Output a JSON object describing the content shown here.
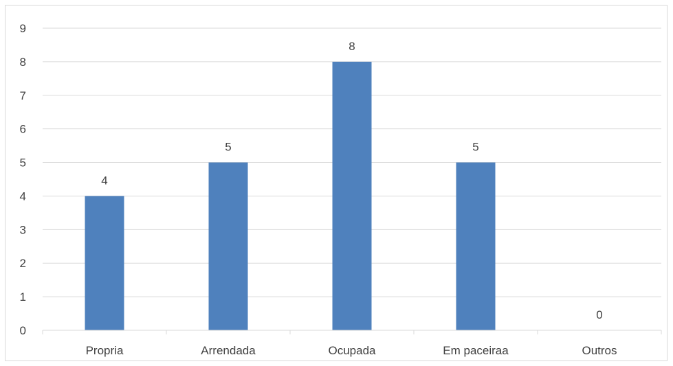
{
  "chart_data": {
    "type": "bar",
    "categories": [
      "Propria",
      "Arrendada",
      "Ocupada",
      "Em paceiraa",
      "Outros"
    ],
    "values": [
      4,
      5,
      8,
      5,
      0
    ],
    "data_labels": [
      "4",
      "5",
      "8",
      "5",
      "0"
    ],
    "title": "",
    "xlabel": "",
    "ylabel": "",
    "ylim": [
      0,
      9
    ],
    "yticks": [
      0,
      1,
      2,
      3,
      4,
      5,
      6,
      7,
      8,
      9
    ],
    "grid": true,
    "legend": "none",
    "bar_color": "#4f81bd",
    "grid_color": "#d9d9d9",
    "text_color": "#404040"
  }
}
